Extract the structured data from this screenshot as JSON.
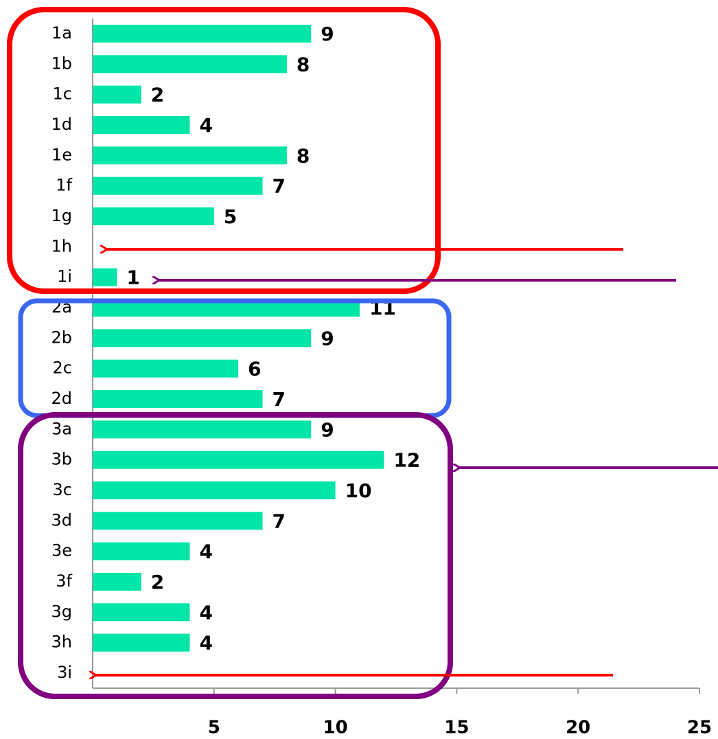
{
  "chart_data": {
    "type": "barh",
    "categories": [
      "1a",
      "1b",
      "1c",
      "1d",
      "1e",
      "1f",
      "1g",
      "1h",
      "1i",
      "2a",
      "2b",
      "2c",
      "2d",
      "3a",
      "3b",
      "3c",
      "3d",
      "3e",
      "3f",
      "3g",
      "3h",
      "3i"
    ],
    "values": [
      9,
      8,
      2,
      4,
      8,
      7,
      5,
      null,
      1,
      11,
      9,
      6,
      7,
      9,
      12,
      10,
      7,
      4,
      2,
      4,
      4,
      null
    ],
    "color": "#00e6a8",
    "xlim": [
      0,
      25
    ],
    "xticks": [
      5,
      10,
      15,
      20,
      25
    ],
    "grid": false
  }
}
